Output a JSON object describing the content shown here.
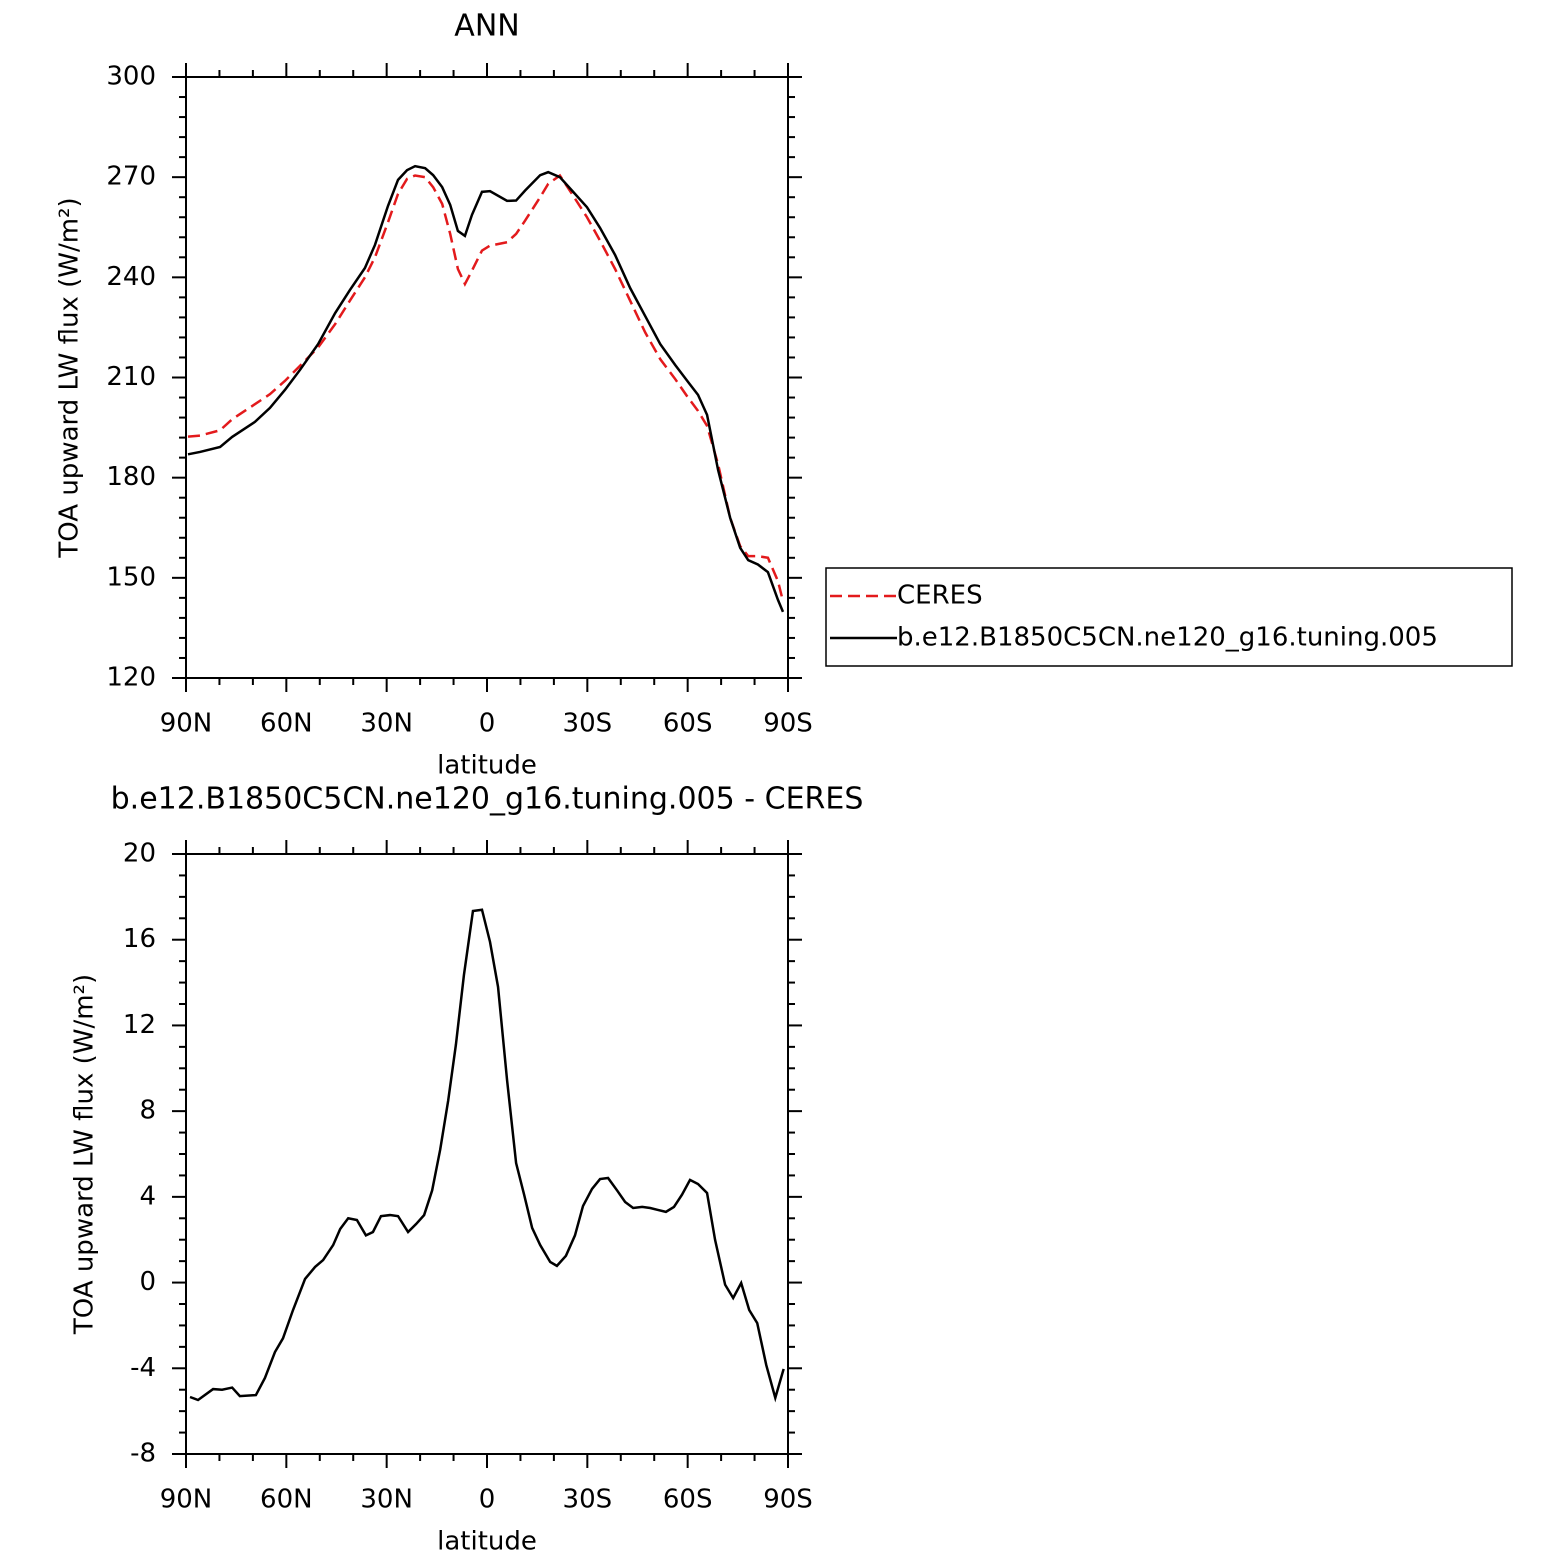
{
  "chart_data": [
    {
      "type": "line",
      "title": "ANN",
      "xlabel": "latitude",
      "ylabel": "TOA upward LW flux (W/m²)",
      "x": [
        89.4,
        85.8,
        79.8,
        76.2,
        69.4,
        64.9,
        60.4,
        55.9,
        50.5,
        45.4,
        41.0,
        36.5,
        33.5,
        29.6,
        26.6,
        23.9,
        21.5,
        18.5,
        16.1,
        13.4,
        11.0,
        8.7,
        6.6,
        4.5,
        1.5,
        -0.9,
        -6.0,
        -8.7,
        -11.4,
        -15.9,
        -18.3,
        -21.8,
        -25.4,
        -29.9,
        -33.8,
        -38.3,
        -42.8,
        -47.3,
        -51.8,
        -56.3,
        -60.1,
        -63.1,
        -65.8,
        -69.1,
        -72.7,
        -75.7,
        -78.1,
        -81.0,
        -84.0,
        -87.0,
        -88.5
      ],
      "series": [
        {
          "name": "CERES",
          "color": "#e31a1c",
          "linestyle": "dashed",
          "values": [
            192.3,
            192.6,
            194.2,
            197.5,
            202,
            205,
            209,
            213.5,
            219,
            226,
            233,
            240,
            246,
            256.5,
            265,
            269.5,
            270.5,
            270,
            267,
            262,
            253,
            242.5,
            238,
            242,
            248,
            249.5,
            250.5,
            253,
            257,
            264,
            268,
            270.5,
            265,
            258,
            251,
            242.5,
            233,
            223.5,
            215.5,
            209.5,
            204,
            200,
            195.5,
            184,
            168,
            159.5,
            156.5,
            156.5,
            156,
            149,
            143
          ]
        },
        {
          "name": "b.e12.B1850C5CN.ne120_g16.tuning.005",
          "color": "#000000",
          "linestyle": "solid",
          "values": [
            187,
            187.7,
            189.2,
            192.2,
            196.7,
            200.9,
            206.3,
            212.3,
            220,
            229.3,
            236.2,
            242.8,
            249.7,
            261.4,
            269.2,
            272.1,
            273.3,
            272.7,
            270.6,
            267,
            261.7,
            253.9,
            252.4,
            258.7,
            265.6,
            265.8,
            262.9,
            263,
            266,
            270.6,
            271.5,
            270,
            266,
            261,
            254.8,
            246.7,
            236.8,
            228.4,
            220,
            213.7,
            208.7,
            204.8,
            198.8,
            182.3,
            168,
            159,
            155.3,
            154,
            151.7,
            143.4,
            139.8
          ]
        }
      ],
      "xlim": [
        90,
        -90
      ],
      "ylim": [
        120,
        300
      ],
      "xticks": [
        {
          "value": 90,
          "label": "90N"
        },
        {
          "value": 60,
          "label": "60N"
        },
        {
          "value": 30,
          "label": "30N"
        },
        0,
        {
          "value": -30,
          "label": "30S"
        },
        {
          "value": -60,
          "label": "60S"
        },
        {
          "value": -90,
          "label": "90S"
        }
      ],
      "yticks": [
        120,
        150,
        180,
        210,
        240,
        270,
        300
      ],
      "legend": "right"
    },
    {
      "type": "line",
      "title": "b.e12.B1850C5CN.ne120_g16.tuning.005 - CERES",
      "xlabel": "latitude",
      "ylabel": "TOA upward LW flux (W/m²)",
      "x": [
        88.8,
        86.4,
        81.9,
        79.2,
        76.2,
        73.9,
        69.1,
        66.4,
        63.4,
        61.0,
        58.0,
        54.4,
        51.4,
        49.0,
        46.0,
        43.9,
        41.5,
        38.9,
        36.2,
        34.1,
        31.7,
        29.0,
        26.6,
        23.6,
        21.2,
        18.8,
        16.4,
        14.0,
        11.6,
        9.3,
        6.9,
        4.2,
        1.5,
        -0.9,
        -3.3,
        -6.0,
        -8.7,
        -11.1,
        -13.5,
        -15.9,
        -18.9,
        -20.9,
        -23.6,
        -26.3,
        -28.7,
        -31.4,
        -33.8,
        -36.2,
        -38.9,
        -41.3,
        -43.7,
        -46.4,
        -48.8,
        -51.1,
        -53.5,
        -55.9,
        -58.3,
        -60.7,
        -63.1,
        -65.8,
        -68.2,
        -71.2,
        -73.6,
        -76.0,
        -78.4,
        -80.8,
        -83.5,
        -86.2,
        -88.7
      ],
      "series": [
        {
          "name": "b.e12.B1850C5CN.ne120_g16.tuning.005 - CERES",
          "color": "#000000",
          "linestyle": "solid",
          "values": [
            -5.34,
            -5.48,
            -4.97,
            -5.0,
            -4.9,
            -5.3,
            -5.25,
            -4.45,
            -3.24,
            -2.6,
            -1.28,
            0.17,
            0.73,
            1.05,
            1.75,
            2.5,
            3.0,
            2.92,
            2.2,
            2.36,
            3.1,
            3.15,
            3.1,
            2.36,
            2.73,
            3.15,
            4.3,
            6.2,
            8.5,
            11.1,
            14.35,
            17.34,
            17.4,
            15.9,
            13.8,
            9.45,
            5.58,
            4.1,
            2.55,
            1.75,
            0.96,
            0.78,
            1.25,
            2.2,
            3.57,
            4.37,
            4.83,
            4.88,
            4.3,
            3.76,
            3.48,
            3.53,
            3.48,
            3.39,
            3.3,
            3.53,
            4.1,
            4.79,
            4.6,
            4.18,
            1.99,
            -0.1,
            -0.72,
            -0.02,
            -1.28,
            -1.89,
            -3.85,
            -5.38,
            -4.03
          ]
        }
      ],
      "xlim": [
        90,
        -90
      ],
      "ylim": [
        -8,
        20
      ],
      "xticks": [
        {
          "value": 90,
          "label": "90N"
        },
        {
          "value": 60,
          "label": "60N"
        },
        {
          "value": 30,
          "label": "30N"
        },
        0,
        {
          "value": -30,
          "label": "30S"
        },
        {
          "value": -60,
          "label": "60S"
        },
        {
          "value": -90,
          "label": "90S"
        }
      ],
      "yticks": [
        -8,
        -4,
        0,
        4,
        8,
        12,
        16,
        20
      ]
    }
  ]
}
